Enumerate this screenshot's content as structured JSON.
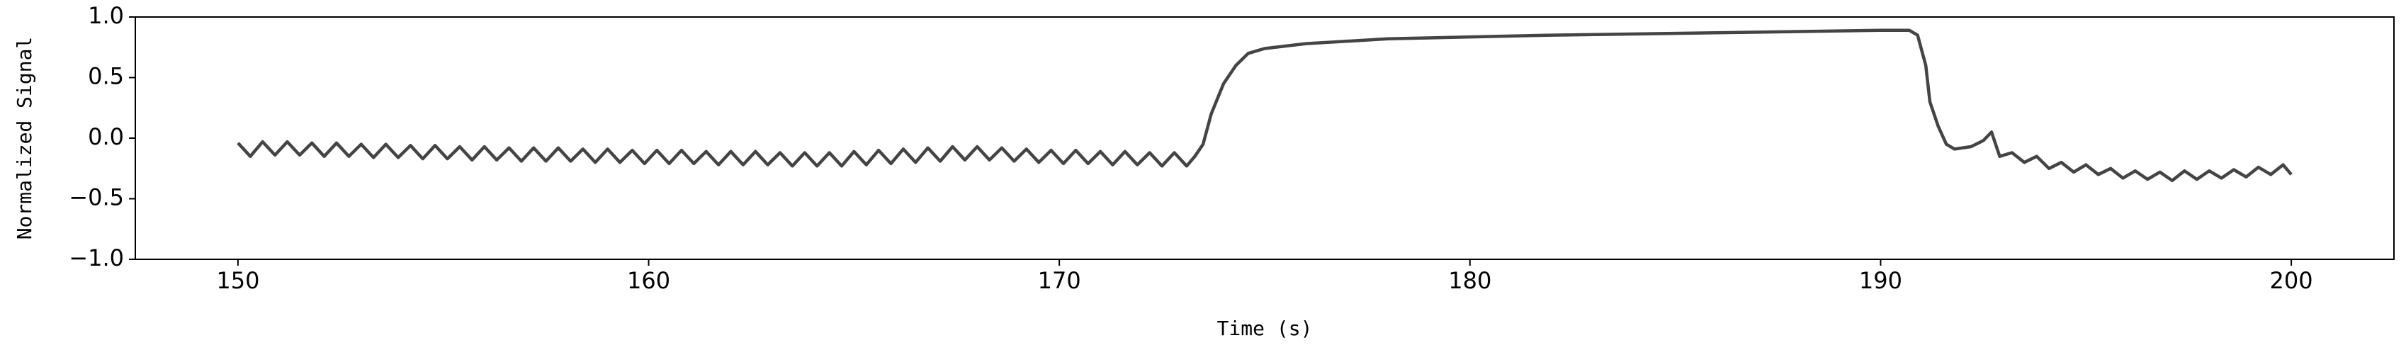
{
  "chart_data": {
    "type": "line",
    "xlabel": "Time (s)",
    "ylabel": "Normalized Signal",
    "x": [
      150,
      150.3,
      150.6,
      150.9,
      151.2,
      151.5,
      151.8,
      152.1,
      152.4,
      152.7,
      153,
      153.3,
      153.6,
      153.9,
      154.2,
      154.5,
      154.8,
      155.1,
      155.4,
      155.7,
      156,
      156.3,
      156.6,
      156.9,
      157.2,
      157.5,
      157.8,
      158.1,
      158.4,
      158.7,
      159,
      159.3,
      159.6,
      159.9,
      160.2,
      160.5,
      160.8,
      161.1,
      161.4,
      161.7,
      162,
      162.3,
      162.6,
      162.9,
      163.2,
      163.5,
      163.8,
      164.1,
      164.4,
      164.7,
      165,
      165.3,
      165.6,
      165.9,
      166.2,
      166.5,
      166.8,
      167.1,
      167.4,
      167.7,
      168,
      168.3,
      168.6,
      168.9,
      169.2,
      169.5,
      169.8,
      170.1,
      170.4,
      170.7,
      171,
      171.3,
      171.6,
      171.9,
      172.2,
      172.5,
      172.8,
      173.1,
      173.3,
      173.5,
      173.7,
      174,
      174.3,
      174.6,
      175,
      176,
      178,
      182,
      186,
      190,
      190.7,
      190.9,
      191.1,
      191.2,
      191.4,
      191.6,
      191.8,
      192.2,
      192.5,
      192.7,
      192.9,
      193.2,
      193.5,
      193.8,
      194.1,
      194.4,
      194.7,
      195,
      195.3,
      195.6,
      195.9,
      196.2,
      196.5,
      196.8,
      197.1,
      197.4,
      197.7,
      198,
      198.3,
      198.6,
      198.9,
      199.2,
      199.5,
      199.8,
      200
    ],
    "series": [
      {
        "color": "#444444",
        "values": [
          -0.04,
          -0.15,
          -0.03,
          -0.14,
          -0.03,
          -0.14,
          -0.04,
          -0.15,
          -0.04,
          -0.15,
          -0.05,
          -0.16,
          -0.05,
          -0.16,
          -0.06,
          -0.17,
          -0.06,
          -0.17,
          -0.07,
          -0.18,
          -0.07,
          -0.18,
          -0.08,
          -0.19,
          -0.08,
          -0.19,
          -0.08,
          -0.19,
          -0.09,
          -0.2,
          -0.09,
          -0.2,
          -0.1,
          -0.21,
          -0.1,
          -0.21,
          -0.1,
          -0.21,
          -0.11,
          -0.22,
          -0.11,
          -0.22,
          -0.11,
          -0.22,
          -0.12,
          -0.23,
          -0.12,
          -0.23,
          -0.12,
          -0.23,
          -0.11,
          -0.22,
          -0.1,
          -0.21,
          -0.09,
          -0.2,
          -0.08,
          -0.19,
          -0.07,
          -0.18,
          -0.07,
          -0.18,
          -0.08,
          -0.19,
          -0.09,
          -0.2,
          -0.1,
          -0.21,
          -0.1,
          -0.21,
          -0.11,
          -0.22,
          -0.11,
          -0.22,
          -0.12,
          -0.23,
          -0.12,
          -0.23,
          -0.15,
          -0.05,
          0.2,
          0.45,
          0.6,
          0.7,
          0.74,
          0.78,
          0.82,
          0.85,
          0.87,
          0.89,
          0.89,
          0.85,
          0.6,
          0.3,
          0.1,
          -0.05,
          -0.09,
          -0.07,
          -0.02,
          0.05,
          -0.15,
          -0.12,
          -0.2,
          -0.15,
          -0.25,
          -0.2,
          -0.28,
          -0.22,
          -0.3,
          -0.25,
          -0.33,
          -0.27,
          -0.34,
          -0.28,
          -0.35,
          -0.27,
          -0.34,
          -0.27,
          -0.33,
          -0.26,
          -0.32,
          -0.24,
          -0.3,
          -0.22,
          -0.3
        ]
      }
    ],
    "xlim": [
      147.5,
      202.5
    ],
    "xticks": [
      150,
      160,
      170,
      180,
      190,
      200
    ],
    "ylim": [
      -1,
      1
    ],
    "yticks": [
      {
        "value": -1,
        "label": "−1.0"
      },
      {
        "value": -0.5,
        "label": "−0.5"
      },
      {
        "value": 0,
        "label": "0.0"
      },
      {
        "value": 0.5,
        "label": "0.5"
      },
      {
        "value": 1,
        "label": "1.0"
      }
    ]
  }
}
